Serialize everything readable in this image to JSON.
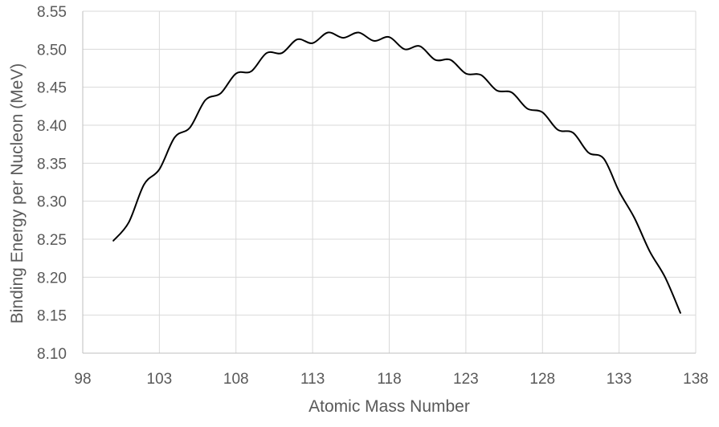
{
  "chart_data": {
    "type": "line",
    "xlabel": "Atomic Mass Number",
    "ylabel": "Binding Energy per Nucleon (MeV)",
    "xlim": [
      98,
      138
    ],
    "ylim": [
      8.1,
      8.55
    ],
    "x_ticks": [
      "98",
      "103",
      "108",
      "113",
      "118",
      "123",
      "128",
      "133",
      "138"
    ],
    "y_ticks": [
      "8.10",
      "8.15",
      "8.20",
      "8.25",
      "8.30",
      "8.35",
      "8.40",
      "8.45",
      "8.50",
      "8.55"
    ],
    "grid": true,
    "legend": "none",
    "line_color": "#000000",
    "grid_color": "#d9d9d9",
    "series": [
      {
        "x": [
          100,
          101,
          102,
          103,
          104,
          105,
          106,
          107,
          108,
          109,
          110,
          111,
          112,
          113,
          114,
          115,
          116,
          117,
          118,
          119,
          120,
          121,
          122,
          123,
          124,
          125,
          126,
          127,
          128,
          129,
          130,
          131,
          132,
          133,
          134,
          135,
          136,
          137
        ],
        "y": [
          8.248,
          8.272,
          8.322,
          8.342,
          8.384,
          8.397,
          8.433,
          8.442,
          8.468,
          8.471,
          8.495,
          8.495,
          8.513,
          8.508,
          8.522,
          8.515,
          8.522,
          8.511,
          8.516,
          8.5,
          8.504,
          8.486,
          8.486,
          8.468,
          8.466,
          8.446,
          8.443,
          8.422,
          8.417,
          8.394,
          8.39,
          8.364,
          8.356,
          8.313,
          8.278,
          8.234,
          8.2,
          8.153
        ]
      }
    ]
  }
}
